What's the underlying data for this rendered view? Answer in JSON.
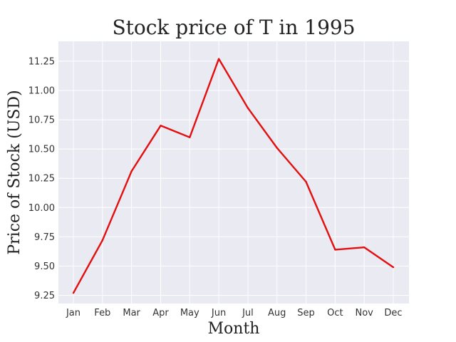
{
  "chart_data": {
    "type": "line",
    "title": "Stock price of T in 1995",
    "xlabel": "Month",
    "ylabel": "Price of Stock (USD)",
    "categories": [
      "Jan",
      "Feb",
      "Mar",
      "Apr",
      "May",
      "Jun",
      "Jul",
      "Aug",
      "Sep",
      "Oct",
      "Nov",
      "Dec"
    ],
    "series": [
      {
        "values": [
          9.27,
          9.72,
          10.31,
          10.7,
          10.6,
          11.27,
          10.85,
          10.51,
          10.22,
          9.64,
          9.66,
          9.49
        ],
        "color": "#e30f0f"
      }
    ],
    "ylim": [
      9.18,
      11.42
    ],
    "yticks": [
      "9.25",
      "9.50",
      "9.75",
      "10.00",
      "10.25",
      "10.50",
      "10.75",
      "11.00",
      "11.25"
    ],
    "grid": true,
    "background": "#eaeaf2",
    "grid_color": "#ffffff"
  }
}
